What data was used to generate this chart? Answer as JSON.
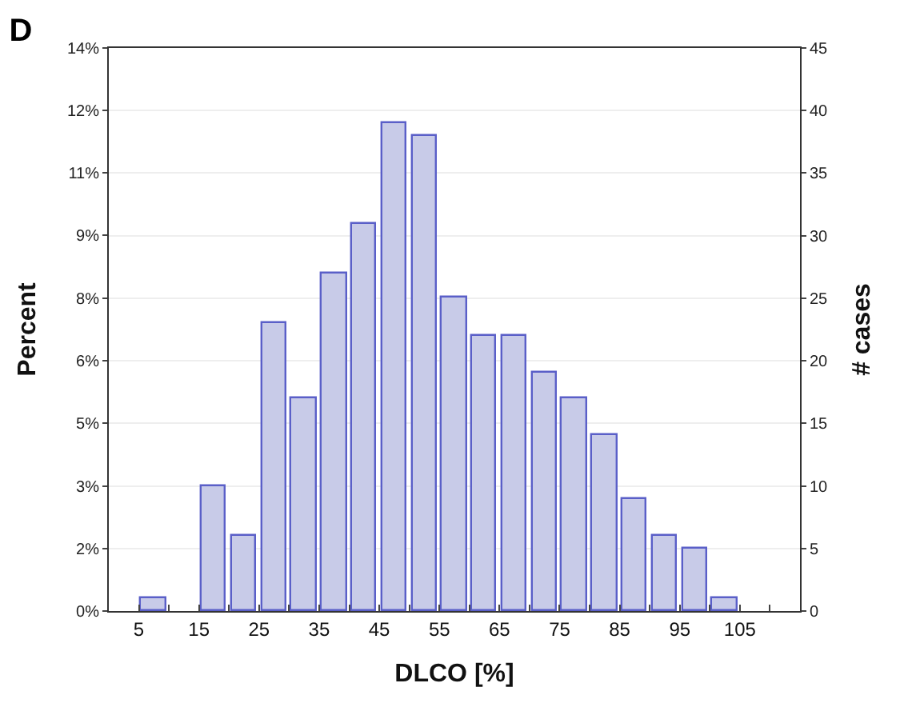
{
  "chart_data": {
    "type": "histogram",
    "title": "D",
    "xlabel": "DLCO [%]",
    "ylabel": "Percent",
    "y2label": "# cases",
    "bins": [
      5,
      10,
      15,
      20,
      25,
      30,
      35,
      40,
      45,
      50,
      55,
      60,
      65,
      70,
      75,
      80,
      85,
      90,
      95,
      100,
      105
    ],
    "series": [
      {
        "color": "#c8cbe8",
        "axis": "y2",
        "values": [
          1,
          0,
          10,
          6,
          23,
          17,
          27,
          31,
          39,
          38,
          25,
          22,
          22,
          19,
          17,
          14,
          9,
          6,
          5,
          1
        ]
      }
    ],
    "xlim": [
      0,
      115
    ],
    "xticks": [
      5,
      {
        "value": 10,
        "label": null
      },
      15,
      {
        "value": 20,
        "label": null
      },
      25,
      {
        "value": 30,
        "label": null
      },
      35,
      {
        "value": 40,
        "label": null
      },
      45,
      {
        "value": 50,
        "label": null
      },
      55,
      {
        "value": 60,
        "label": null
      },
      65,
      {
        "value": 70,
        "label": null
      },
      75,
      {
        "value": 80,
        "label": null
      },
      85,
      {
        "value": 90,
        "label": null
      },
      95,
      {
        "value": 100,
        "label": null
      },
      105,
      {
        "value": 110,
        "label": null
      }
    ],
    "ylim": [
      0,
      13.55
    ],
    "yticks": [
      {
        "value": 0,
        "label": "0%"
      },
      {
        "value": 1.51,
        "label": "2%"
      },
      {
        "value": 3.01,
        "label": "3%"
      },
      {
        "value": 4.52,
        "label": "5%"
      },
      {
        "value": 6.02,
        "label": "6%"
      },
      {
        "value": 7.53,
        "label": "8%"
      },
      {
        "value": 9.04,
        "label": "9%"
      },
      {
        "value": 10.54,
        "label": "11%"
      },
      {
        "value": 12.05,
        "label": "12%"
      },
      {
        "value": 13.55,
        "label": "14%"
      }
    ],
    "y2lim": [
      0,
      45
    ],
    "y2ticks": [
      0,
      5,
      10,
      15,
      20,
      25,
      30,
      35,
      40,
      45
    ],
    "grid": "y"
  }
}
